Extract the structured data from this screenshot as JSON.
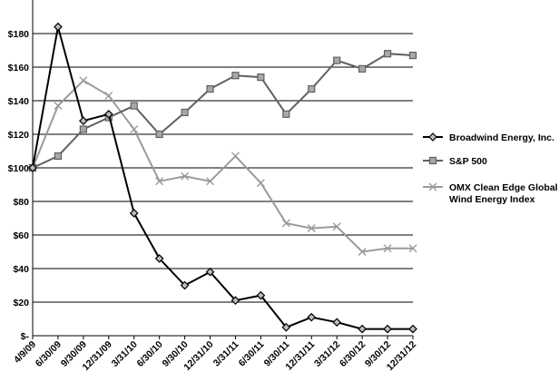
{
  "chart_data": {
    "type": "line",
    "categories": [
      "4/9/09",
      "6/30/09",
      "9/30/09",
      "12/31/09",
      "3/31/10",
      "6/30/10",
      "9/30/10",
      "12/31/10",
      "3/31/11",
      "6/30/11",
      "9/30/11",
      "12/31/11",
      "3/31/12",
      "6/30/12",
      "9/30/12",
      "12/31/12"
    ],
    "ylim": [
      0,
      200
    ],
    "ytick_values": [
      0,
      20,
      40,
      60,
      80,
      100,
      120,
      140,
      160,
      180
    ],
    "ytick_labels": [
      "$-",
      "$20",
      "$40",
      "$60",
      "$80",
      "$100",
      "$120",
      "$140",
      "$160",
      "$180"
    ],
    "grid": true,
    "legend_position": "right",
    "series": [
      {
        "name": "Broadwind Energy, Inc.",
        "color": "#000000",
        "marker": "diamond",
        "values": [
          100,
          184,
          128,
          132,
          73,
          46,
          30,
          38,
          21,
          24,
          5,
          11,
          8,
          4,
          4,
          4
        ]
      },
      {
        "name": "S&P 500",
        "color": "#606060",
        "marker": "square",
        "values": [
          100,
          107,
          123,
          130,
          137,
          120,
          133,
          147,
          155,
          154,
          132,
          147,
          164,
          159,
          168,
          167
        ]
      },
      {
        "name": "OMX Clean Edge Global Wind Energy Index",
        "color": "#9a9a9a",
        "marker": "x",
        "values": [
          100,
          137,
          152,
          143,
          123,
          92,
          95,
          92,
          107,
          91,
          67,
          64,
          65,
          50,
          52,
          52
        ]
      }
    ]
  }
}
